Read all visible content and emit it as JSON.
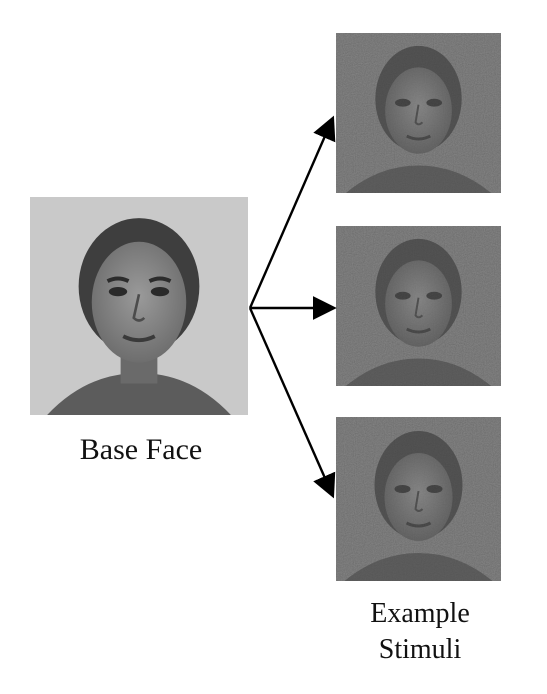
{
  "captions": {
    "base_face": "Base Face",
    "example_stimuli_line1": "Example",
    "example_stimuli_line2": "Stimuli"
  },
  "colors": {
    "base_background": "#c9c9c9",
    "noise_background": "#8c8c8c",
    "arrow": "#000000"
  },
  "icons": [
    "base-face-photo",
    "noisy-face-stimulus"
  ]
}
